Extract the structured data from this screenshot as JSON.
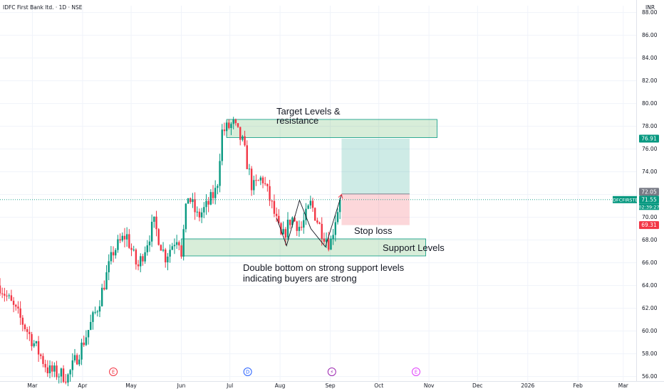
{
  "header": {
    "symbol_title": "IDFC First Bank ltd. · 1D · NSE",
    "currency": "INR"
  },
  "chart_data": {
    "type": "candlestick",
    "y_ticks": [
      "88.00",
      "86.00",
      "84.00",
      "82.00",
      "80.00",
      "78.00",
      "76.00",
      "74.00",
      "72.00",
      "70.00",
      "68.00",
      "66.00",
      "64.00",
      "62.00",
      "60.00",
      "58.00",
      "56.00"
    ],
    "x_ticks": [
      {
        "label": "Mar",
        "day": -120
      },
      {
        "label": "Apr",
        "day": -89
      },
      {
        "label": "May",
        "day": -59
      },
      {
        "label": "Jun",
        "day": -28
      },
      {
        "label": "Jul",
        "day": 2
      },
      {
        "label": "Aug",
        "day": 33
      },
      {
        "label": "Sep",
        "day": 64
      },
      {
        "label": "Oct",
        "day": 94
      },
      {
        "label": "Nov",
        "day": 125
      },
      {
        "label": "Dec",
        "day": 155
      },
      {
        "label": "2026",
        "day": 186
      },
      {
        "label": "Feb",
        "day": 217
      },
      {
        "label": "Mar",
        "day": 245
      }
    ],
    "ylim": [
      55.6,
      88.6
    ],
    "xlim": [
      -140,
      253
    ],
    "key_points": [
      {
        "day": -140,
        "close": 64.0
      },
      {
        "day": -125,
        "close": 60.5
      },
      {
        "day": -110,
        "close": 56.5
      },
      {
        "day": -98,
        "close": 56.0
      },
      {
        "day": -90,
        "close": 58.5
      },
      {
        "day": -80,
        "close": 62.0
      },
      {
        "day": -70,
        "close": 67.0
      },
      {
        "day": -62,
        "close": 68.5
      },
      {
        "day": -55,
        "close": 65.5
      },
      {
        "day": -45,
        "close": 69.5
      },
      {
        "day": -38,
        "close": 66.5
      },
      {
        "day": -30,
        "close": 68.5
      },
      {
        "day": -28,
        "close": 67.0
      },
      {
        "day": -24,
        "close": 72.0
      },
      {
        "day": -18,
        "close": 70.0
      },
      {
        "day": -12,
        "close": 71.0
      },
      {
        "day": -6,
        "close": 72.5
      },
      {
        "day": -3,
        "close": 77.5
      },
      {
        "day": 4,
        "close": 78.2
      },
      {
        "day": 10,
        "close": 76.5
      },
      {
        "day": 16,
        "close": 72.5
      },
      {
        "day": 22,
        "close": 73.5
      },
      {
        "day": 28,
        "close": 71.0
      },
      {
        "day": 34,
        "close": 68.0
      },
      {
        "day": 40,
        "close": 70.0
      },
      {
        "day": 46,
        "close": 69.0
      },
      {
        "day": 52,
        "close": 71.2
      },
      {
        "day": 58,
        "close": 69.0
      },
      {
        "day": 64,
        "close": 67.6
      },
      {
        "day": 68,
        "close": 70.5
      },
      {
        "day": 71,
        "close": 71.55
      }
    ],
    "series": [
      {
        "name": "IDFCFIRSTB",
        "last": "71.55"
      }
    ],
    "price_labels": [
      {
        "value": 76.91,
        "text": "76.91",
        "color": "#089981"
      },
      {
        "value": 72.05,
        "text": "72.05",
        "color": "#787b86"
      },
      {
        "value": 71.55,
        "text": "71.55",
        "color": "#089981"
      },
      {
        "value": 69.31,
        "text": "69.31",
        "color": "#f23645"
      }
    ],
    "countdown": "02:39:27",
    "colors": {
      "up": "#089981",
      "down": "#f23645"
    }
  },
  "annotations": {
    "target": {
      "line1": "Target Levels &",
      "line2": "resistance",
      "zone_top": 78.6,
      "zone_bottom": 77.0,
      "day_start": 0,
      "day_end": 130
    },
    "support": {
      "label": "Support Levels",
      "zone_top": 68.1,
      "zone_bottom": 66.6,
      "day_start": -28,
      "day_end": 123
    },
    "stop_loss": "Stop loss",
    "note": {
      "line1": "Double bottom on strong support levels",
      "line2": "indicating buyers are strong"
    },
    "position": {
      "entry": 72.05,
      "target": 76.91,
      "stop": 69.31,
      "day_start": 71,
      "day_end": 113
    },
    "pattern": [
      [
        31,
        69.9
      ],
      [
        37,
        67.5
      ],
      [
        45,
        71.5
      ],
      [
        52,
        69.0
      ],
      [
        61,
        67.4
      ],
      [
        71,
        72.0
      ]
    ]
  },
  "event_markers": [
    {
      "icon": "earnings-icon",
      "glyph": "E",
      "day": -70,
      "color": "#f23645"
    },
    {
      "icon": "dividend-icon",
      "glyph": "D",
      "day": 13,
      "color": "#2962ff"
    },
    {
      "icon": "split-icon",
      "glyph": "⚡",
      "day": 65,
      "color": "#9c27b0"
    },
    {
      "icon": "earnings-icon",
      "glyph": "E",
      "day": 117,
      "color": "#e040fb"
    }
  ]
}
